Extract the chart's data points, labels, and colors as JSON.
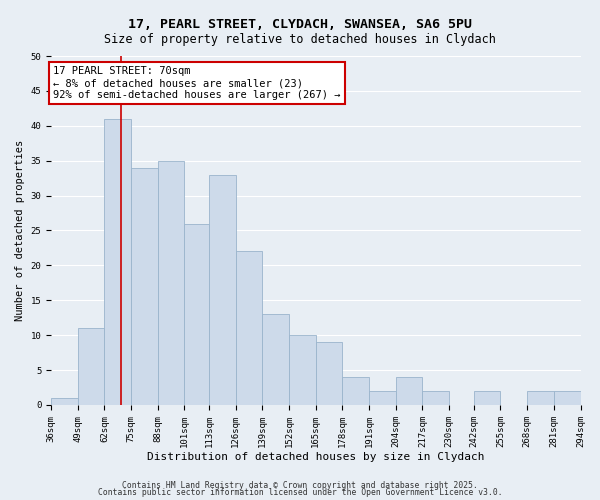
{
  "title": "17, PEARL STREET, CLYDACH, SWANSEA, SA6 5PU",
  "subtitle": "Size of property relative to detached houses in Clydach",
  "xlabel": "Distribution of detached houses by size in Clydach",
  "ylabel": "Number of detached properties",
  "bin_edges": [
    36,
    49,
    62,
    75,
    88,
    101,
    113,
    126,
    139,
    152,
    165,
    178,
    191,
    204,
    217,
    230,
    242,
    255,
    268,
    281,
    294
  ],
  "bar_heights": [
    1,
    11,
    41,
    34,
    35,
    26,
    33,
    22,
    13,
    10,
    9,
    4,
    2,
    4,
    2,
    0,
    2,
    0,
    2,
    2
  ],
  "bar_color": "#cddaea",
  "bar_edgecolor": "#9ab4cc",
  "ylim": [
    0,
    50
  ],
  "yticks": [
    0,
    5,
    10,
    15,
    20,
    25,
    30,
    35,
    40,
    45,
    50
  ],
  "property_line_x": 70,
  "property_line_color": "#cc0000",
  "annotation_title": "17 PEARL STREET: 70sqm",
  "annotation_line1": "← 8% of detached houses are smaller (23)",
  "annotation_line2": "92% of semi-detached houses are larger (267) →",
  "annotation_box_facecolor": "#ffffff",
  "annotation_box_edgecolor": "#cc0000",
  "footer1": "Contains HM Land Registry data © Crown copyright and database right 2025.",
  "footer2": "Contains public sector information licensed under the Open Government Licence v3.0.",
  "background_color": "#e8eef4",
  "plot_background": "#e8eef4",
  "grid_color": "#ffffff",
  "title_fontsize": 9.5,
  "subtitle_fontsize": 8.5,
  "xlabel_fontsize": 8,
  "ylabel_fontsize": 7.5,
  "tick_fontsize": 6.5,
  "annotation_fontsize": 7.5,
  "footer_fontsize": 5.8
}
